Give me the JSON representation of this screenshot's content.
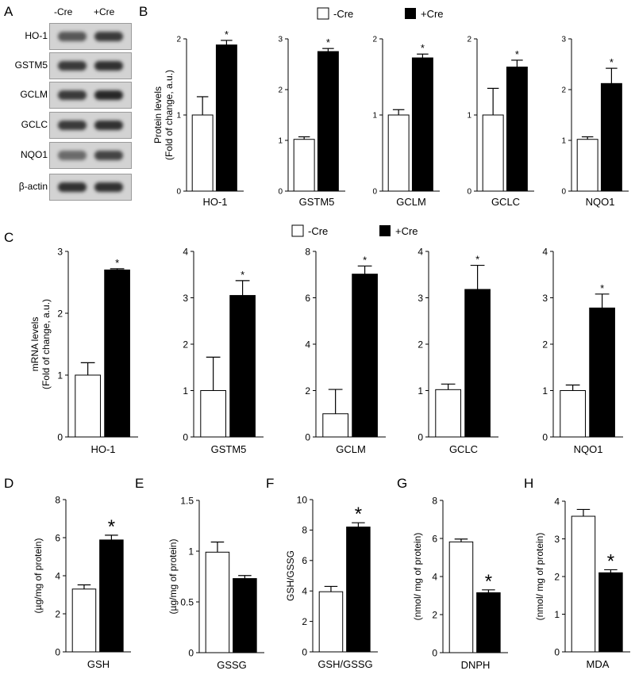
{
  "panel_letters": [
    "A",
    "B",
    "C",
    "D",
    "E",
    "F",
    "G",
    "H"
  ],
  "legend": {
    "minus": "-Cre",
    "plus": "+Cre"
  },
  "western": {
    "columns": [
      "-Cre",
      "+Cre"
    ],
    "rows": [
      {
        "label": "HO-1",
        "intensity": [
          0.65,
          0.8
        ]
      },
      {
        "label": "GSTM5",
        "intensity": [
          0.8,
          0.85
        ]
      },
      {
        "label": "GCLM",
        "intensity": [
          0.8,
          0.9
        ]
      },
      {
        "label": "GCLC",
        "intensity": [
          0.8,
          0.85
        ]
      },
      {
        "label": "NQO1",
        "intensity": [
          0.55,
          0.75
        ]
      },
      {
        "label": "β-actin",
        "intensity": [
          0.85,
          0.85
        ]
      }
    ]
  },
  "chart_data": [
    {
      "id": "B1",
      "type": "bar",
      "categories": [
        "-Cre",
        "+Cre"
      ],
      "values": [
        1.0,
        1.92
      ],
      "errors": [
        0.24,
        0.06
      ],
      "significant": [
        false,
        true
      ],
      "ylim": [
        0,
        2
      ],
      "yticks": [
        "0",
        "1",
        "2"
      ],
      "xlabel": "HO-1",
      "ylabel": "Protein levels|(Fold of change, a.u.)"
    },
    {
      "id": "B2",
      "type": "bar",
      "categories": [
        "-Cre",
        "+Cre"
      ],
      "values": [
        1.02,
        2.75
      ],
      "errors": [
        0.05,
        0.06
      ],
      "significant": [
        false,
        true
      ],
      "ylim": [
        0,
        3
      ],
      "yticks": [
        "0",
        "1",
        "2",
        "3"
      ],
      "xlabel": "GSTM5",
      "ylabel": ""
    },
    {
      "id": "B3",
      "type": "bar",
      "categories": [
        "-Cre",
        "+Cre"
      ],
      "values": [
        1.0,
        1.75
      ],
      "errors": [
        0.07,
        0.05
      ],
      "significant": [
        false,
        true
      ],
      "ylim": [
        0,
        2
      ],
      "yticks": [
        "0",
        "1",
        "2"
      ],
      "xlabel": "GCLM",
      "ylabel": ""
    },
    {
      "id": "B4",
      "type": "bar",
      "categories": [
        "-Cre",
        "+Cre"
      ],
      "values": [
        1.0,
        1.63
      ],
      "errors": [
        0.35,
        0.09
      ],
      "significant": [
        false,
        true
      ],
      "ylim": [
        0,
        2
      ],
      "yticks": [
        "0",
        "1",
        "2"
      ],
      "xlabel": "GCLC",
      "ylabel": ""
    },
    {
      "id": "B5",
      "type": "bar",
      "categories": [
        "-Cre",
        "+Cre"
      ],
      "values": [
        1.02,
        2.12
      ],
      "errors": [
        0.05,
        0.3
      ],
      "significant": [
        false,
        true
      ],
      "ylim": [
        0,
        3
      ],
      "yticks": [
        "0",
        "1",
        "2",
        "3"
      ],
      "xlabel": "NQO1",
      "ylabel": ""
    },
    {
      "id": "C1",
      "type": "bar",
      "categories": [
        "-Cre",
        "+Cre"
      ],
      "values": [
        1.0,
        2.7
      ],
      "errors": [
        0.2,
        0.02
      ],
      "significant": [
        false,
        true
      ],
      "ylim": [
        0,
        3
      ],
      "yticks": [
        "0",
        "1",
        "2",
        "3"
      ],
      "xlabel": "HO-1",
      "ylabel": "mRNA levels|(Fold of change, a.u.)"
    },
    {
      "id": "C2",
      "type": "bar",
      "categories": [
        "-Cre",
        "+Cre"
      ],
      "values": [
        1.0,
        3.05
      ],
      "errors": [
        0.72,
        0.32
      ],
      "significant": [
        false,
        true
      ],
      "ylim": [
        0,
        4
      ],
      "yticks": [
        "0",
        "1",
        "2",
        "3",
        "4"
      ],
      "xlabel": "GSTM5",
      "ylabel": ""
    },
    {
      "id": "C3",
      "type": "bar",
      "categories": [
        "-Cre",
        "+Cre"
      ],
      "values": [
        1.0,
        7.02
      ],
      "errors": [
        1.05,
        0.35
      ],
      "significant": [
        false,
        true
      ],
      "ylim": [
        0,
        8
      ],
      "yticks": [
        "0",
        "2",
        "4",
        "6",
        "8"
      ],
      "xlabel": "GCLM",
      "ylabel": ""
    },
    {
      "id": "C4",
      "type": "bar",
      "categories": [
        "-Cre",
        "+Cre"
      ],
      "values": [
        1.02,
        3.18
      ],
      "errors": [
        0.12,
        0.52
      ],
      "significant": [
        false,
        true
      ],
      "ylim": [
        0,
        4
      ],
      "yticks": [
        "0",
        "1",
        "2",
        "3",
        "4"
      ],
      "xlabel": "GCLC",
      "ylabel": ""
    },
    {
      "id": "C5",
      "type": "bar",
      "categories": [
        "-Cre",
        "+Cre"
      ],
      "values": [
        1.0,
        2.78
      ],
      "errors": [
        0.12,
        0.3
      ],
      "significant": [
        false,
        true
      ],
      "ylim": [
        0,
        4
      ],
      "yticks": [
        "0",
        "1",
        "2",
        "3",
        "4"
      ],
      "xlabel": "NQO1",
      "ylabel": ""
    },
    {
      "id": "D",
      "type": "bar",
      "categories": [
        "-Cre",
        "+Cre"
      ],
      "values": [
        3.3,
        5.88
      ],
      "errors": [
        0.22,
        0.25
      ],
      "significant": [
        false,
        true
      ],
      "ylim": [
        0,
        8
      ],
      "yticks": [
        "0",
        "2",
        "4",
        "6",
        "8"
      ],
      "xlabel": "GSH",
      "ylabel": "(µg/mg of protein)"
    },
    {
      "id": "E",
      "type": "bar",
      "categories": [
        "-Cre",
        "+Cre"
      ],
      "values": [
        0.99,
        0.73
      ],
      "errors": [
        0.1,
        0.03
      ],
      "significant": [
        false,
        false
      ],
      "ylim": [
        0,
        1.5
      ],
      "yticks": [
        "0",
        "0.5",
        "1",
        "1.5"
      ],
      "xlabel": "GSSG",
      "ylabel": "(µg/mg of protein)"
    },
    {
      "id": "F",
      "type": "bar",
      "categories": [
        "-Cre",
        "+Cre"
      ],
      "values": [
        3.95,
        8.2
      ],
      "errors": [
        0.35,
        0.28
      ],
      "significant": [
        false,
        true
      ],
      "ylim": [
        0,
        10
      ],
      "yticks": [
        "0",
        "2",
        "4",
        "6",
        "8",
        "10"
      ],
      "xlabel": "GSH/GSSG",
      "ylabel": "GSH/GSSG"
    },
    {
      "id": "G",
      "type": "bar",
      "categories": [
        "-Cre",
        "+Cre"
      ],
      "values": [
        5.82,
        3.15
      ],
      "errors": [
        0.15,
        0.15
      ],
      "significant": [
        false,
        true
      ],
      "ylim": [
        0,
        8
      ],
      "yticks": [
        "0",
        "2",
        "4",
        "6",
        "8"
      ],
      "xlabel": "DNPH",
      "ylabel": "(nmol/ mg of protein)"
    },
    {
      "id": "H",
      "type": "bar",
      "categories": [
        "-Cre",
        "+Cre"
      ],
      "values": [
        3.6,
        2.1
      ],
      "errors": [
        0.18,
        0.08
      ],
      "significant": [
        false,
        true
      ],
      "ylim": [
        0,
        4
      ],
      "yticks": [
        "0",
        "1",
        "2",
        "3",
        "4"
      ],
      "xlabel": "MDA",
      "ylabel": "(nmol/ mg of protein)"
    }
  ]
}
